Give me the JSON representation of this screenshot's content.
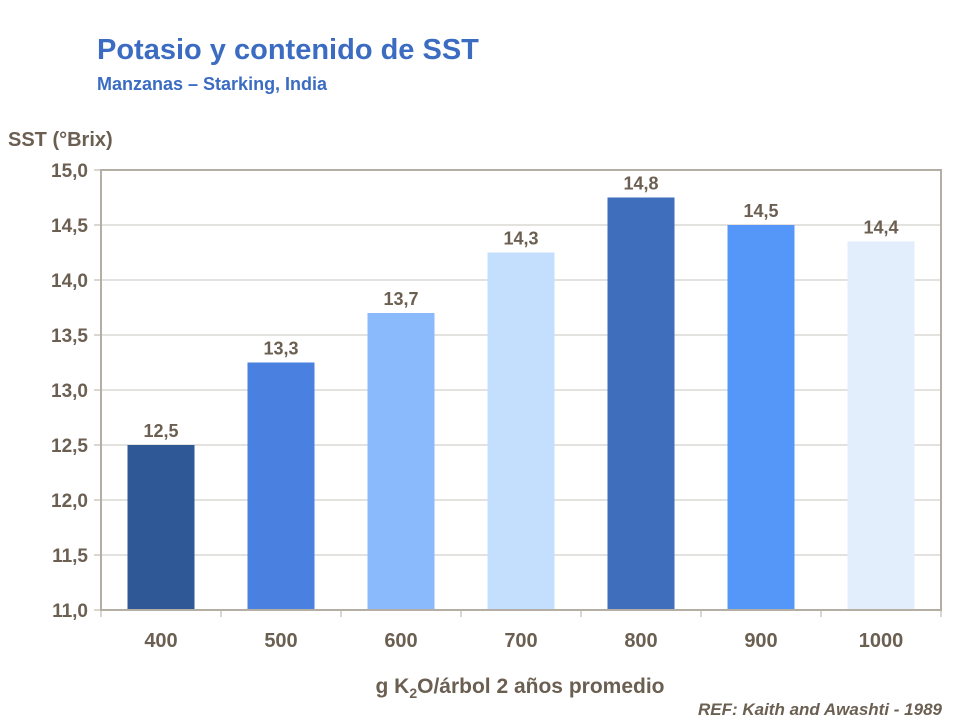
{
  "title": "Potasio y contenido de SST",
  "subtitle": "Manzanas – Starking, India",
  "reference": "REF:  Kaith and Awashti - 1989",
  "chart_data": {
    "type": "bar",
    "ylabel": "SST (°Brix)",
    "xlabel_parts": [
      "g K",
      "2",
      "O/árbol 2 años promedio"
    ],
    "categories": [
      "400",
      "500",
      "600",
      "700",
      "800",
      "900",
      "1000"
    ],
    "values": [
      12.5,
      13.25,
      13.7,
      14.25,
      14.75,
      14.5,
      14.35
    ],
    "data_labels": [
      "12,5",
      "13,3",
      "13,7",
      "14,3",
      "14,8",
      "14,5",
      "14,4"
    ],
    "bar_colors": [
      "#2f5896",
      "#4a80e0",
      "#8abafc",
      "#c4dffe",
      "#3e6ebc",
      "#5597f9",
      "#e2eefc"
    ],
    "ylim": [
      11.0,
      15.0
    ],
    "yticks": [
      "11,0",
      "11,5",
      "12,0",
      "12,5",
      "13,0",
      "13,5",
      "14,0",
      "14,5",
      "15,0"
    ],
    "grid": true,
    "legend": "none"
  }
}
